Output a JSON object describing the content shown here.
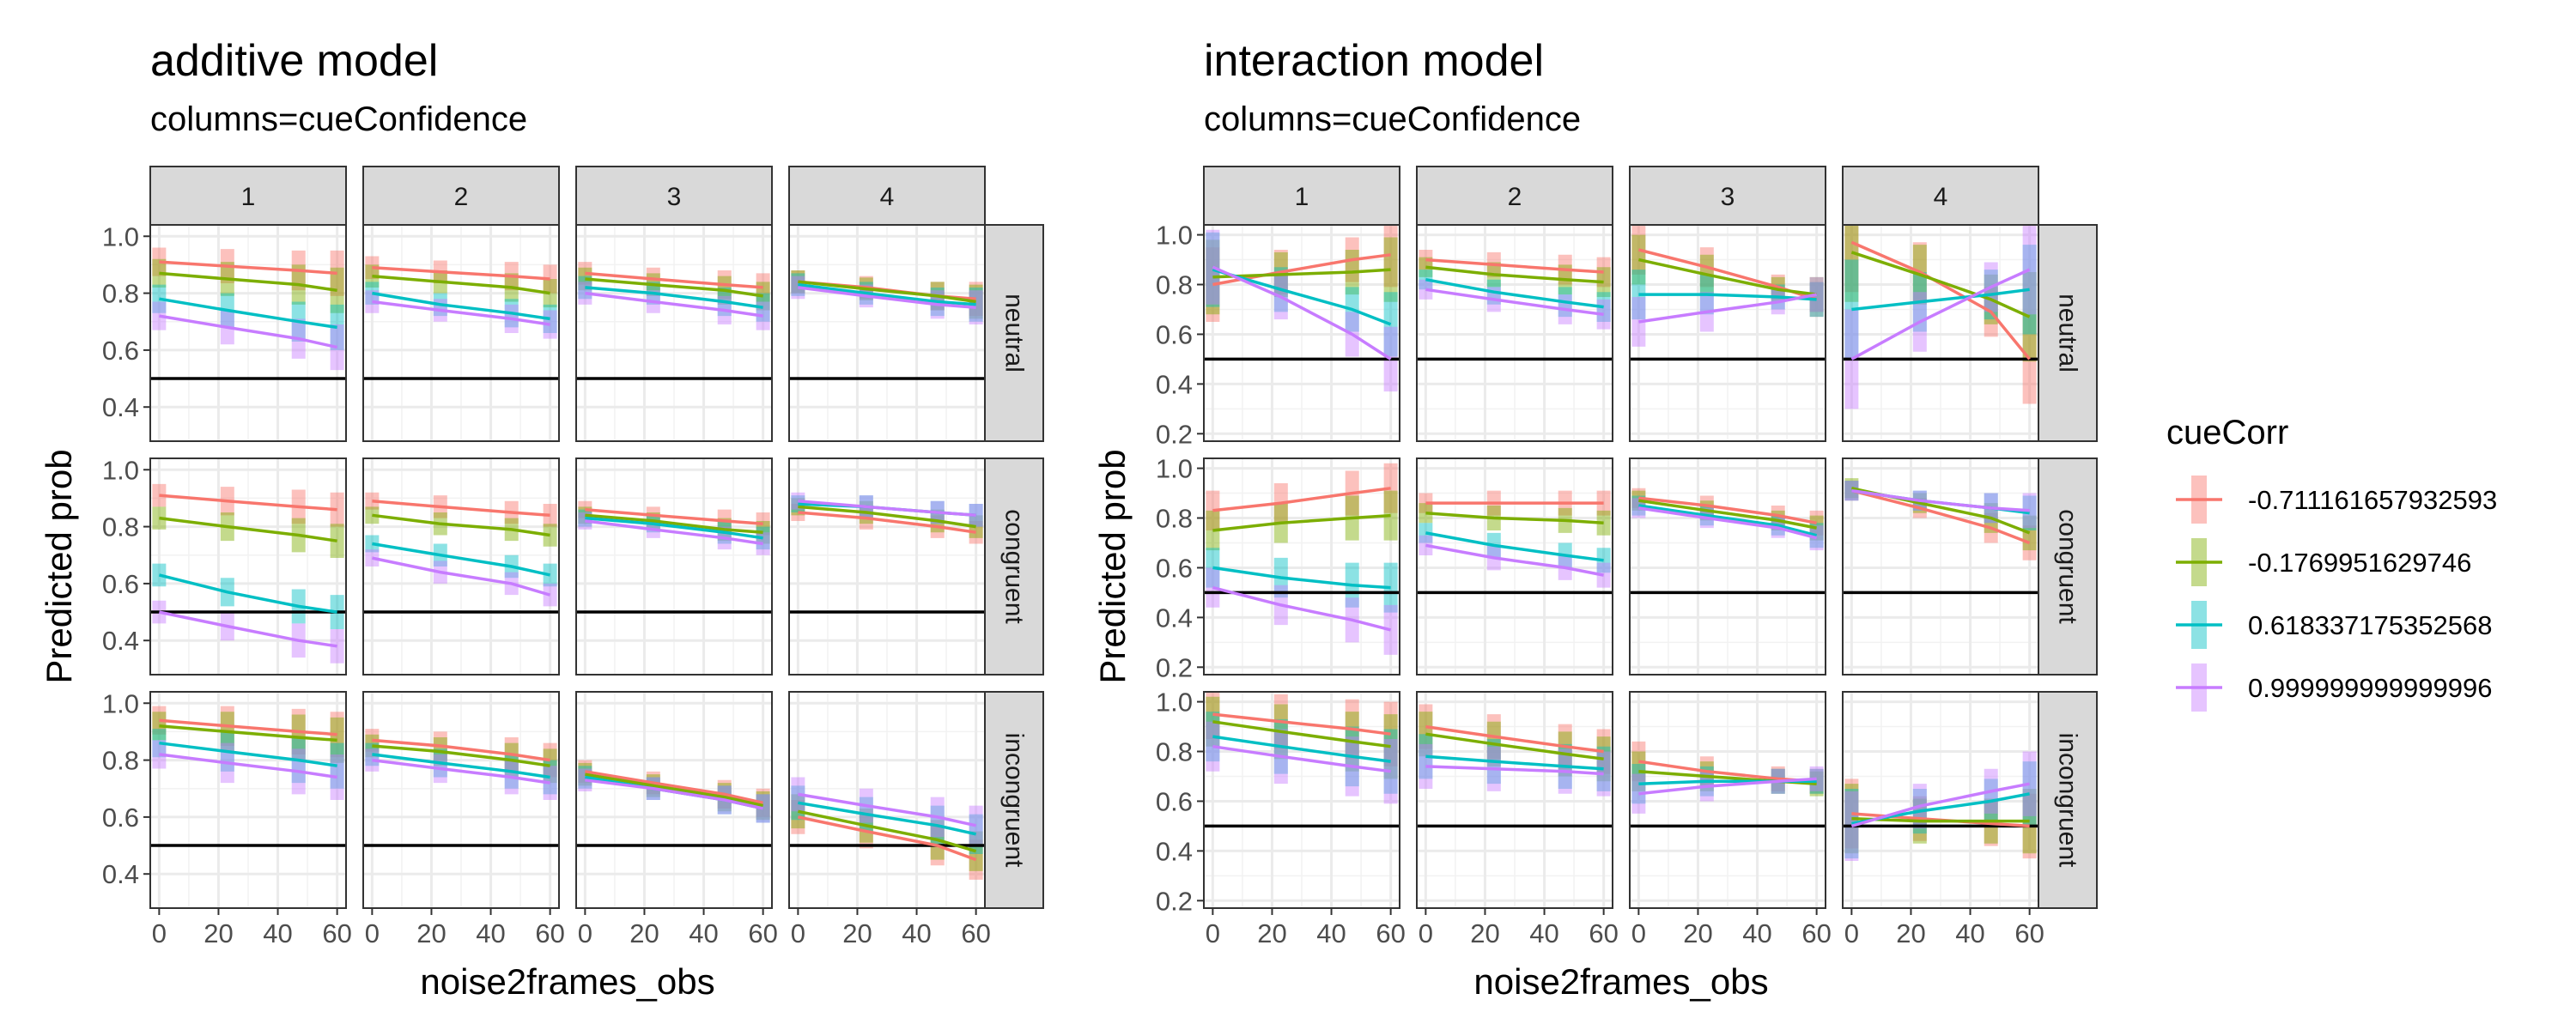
{
  "chart_data": [
    {
      "type": "line",
      "title": "additive model",
      "subtitle": "columns=cueConfidence",
      "xlabel": "noise2frames_obs",
      "ylabel": "Predicted prob",
      "x_ticks": [
        0,
        20,
        40,
        60
      ],
      "y_ticks": [
        0.4,
        0.6,
        0.8,
        1.0
      ],
      "ylim": [
        0.28,
        1.04
      ],
      "xlim": [
        -3,
        63
      ],
      "reference_line": 0.5,
      "columns": [
        "1",
        "2",
        "3",
        "4"
      ],
      "rows": [
        "neutral",
        "congruent",
        "incongruent"
      ],
      "x": [
        0,
        23,
        47,
        60
      ],
      "series_names": [
        "-0.711161657932593",
        "-0.1769951629746",
        "0.618337175352568",
        "0.999999999999996"
      ],
      "panels": [
        [
          {
            "lines": [
              [
                0.91,
                0.895,
                0.88,
                0.87
              ],
              [
                0.87,
                0.85,
                0.83,
                0.81
              ],
              [
                0.78,
                0.74,
                0.7,
                0.68
              ],
              [
                0.72,
                0.68,
                0.64,
                0.61
              ]
            ],
            "err": [
              0.05,
              0.06,
              0.07,
              0.08
            ]
          },
          {
            "lines": [
              [
                0.89,
                0.875,
                0.86,
                0.85
              ],
              [
                0.86,
                0.84,
                0.82,
                0.8
              ],
              [
                0.8,
                0.76,
                0.73,
                0.71
              ],
              [
                0.77,
                0.74,
                0.71,
                0.69
              ]
            ],
            "err": [
              0.04,
              0.04,
              0.05,
              0.05
            ]
          },
          {
            "lines": [
              [
                0.87,
                0.85,
                0.83,
                0.82
              ],
              [
                0.85,
                0.83,
                0.81,
                0.79
              ],
              [
                0.82,
                0.8,
                0.77,
                0.75
              ],
              [
                0.8,
                0.77,
                0.74,
                0.72
              ]
            ],
            "err": [
              0.04,
              0.04,
              0.05,
              0.05
            ]
          },
          {
            "lines": [
              [
                0.84,
                0.82,
                0.79,
                0.78
              ],
              [
                0.84,
                0.815,
                0.79,
                0.77
              ],
              [
                0.83,
                0.8,
                0.77,
                0.76
              ],
              [
                0.82,
                0.79,
                0.76,
                0.75
              ]
            ],
            "err": [
              0.04,
              0.04,
              0.05,
              0.06
            ]
          }
        ],
        [
          {
            "lines": [
              [
                0.91,
                0.89,
                0.87,
                0.86
              ],
              [
                0.83,
                0.8,
                0.77,
                0.75
              ],
              [
                0.63,
                0.57,
                0.52,
                0.5
              ],
              [
                0.5,
                0.45,
                0.4,
                0.38
              ]
            ],
            "err": [
              0.04,
              0.05,
              0.06,
              0.06
            ]
          },
          {
            "lines": [
              [
                0.89,
                0.87,
                0.85,
                0.84
              ],
              [
                0.84,
                0.81,
                0.79,
                0.77
              ],
              [
                0.74,
                0.7,
                0.66,
                0.63
              ],
              [
                0.69,
                0.64,
                0.6,
                0.56
              ]
            ],
            "err": [
              0.03,
              0.04,
              0.04,
              0.04
            ]
          },
          {
            "lines": [
              [
                0.86,
                0.84,
                0.82,
                0.81
              ],
              [
                0.84,
                0.82,
                0.79,
                0.78
              ],
              [
                0.83,
                0.81,
                0.78,
                0.76
              ],
              [
                0.82,
                0.79,
                0.76,
                0.74
              ]
            ],
            "err": [
              0.03,
              0.03,
              0.04,
              0.04
            ]
          },
          {
            "lines": [
              [
                0.85,
                0.83,
                0.8,
                0.78
              ],
              [
                0.87,
                0.85,
                0.82,
                0.8
              ],
              [
                0.88,
                0.87,
                0.85,
                0.84
              ],
              [
                0.89,
                0.87,
                0.85,
                0.84
              ]
            ],
            "err": [
              0.03,
              0.04,
              0.04,
              0.04
            ]
          }
        ],
        [
          {
            "lines": [
              [
                0.94,
                0.92,
                0.9,
                0.89
              ],
              [
                0.92,
                0.9,
                0.88,
                0.87
              ],
              [
                0.86,
                0.83,
                0.8,
                0.78
              ],
              [
                0.82,
                0.79,
                0.76,
                0.74
              ]
            ],
            "err": [
              0.05,
              0.07,
              0.08,
              0.08
            ]
          },
          {
            "lines": [
              [
                0.87,
                0.85,
                0.82,
                0.8
              ],
              [
                0.85,
                0.83,
                0.8,
                0.78
              ],
              [
                0.82,
                0.79,
                0.76,
                0.74
              ],
              [
                0.8,
                0.77,
                0.74,
                0.72
              ]
            ],
            "err": [
              0.04,
              0.05,
              0.06,
              0.06
            ]
          },
          {
            "lines": [
              [
                0.76,
                0.72,
                0.68,
                0.65
              ],
              [
                0.75,
                0.71,
                0.67,
                0.64
              ],
              [
                0.74,
                0.7,
                0.66,
                0.63
              ],
              [
                0.73,
                0.7,
                0.66,
                0.63
              ]
            ],
            "err": [
              0.04,
              0.04,
              0.05,
              0.05
            ]
          },
          {
            "lines": [
              [
                0.6,
                0.55,
                0.5,
                0.45
              ],
              [
                0.62,
                0.57,
                0.52,
                0.48
              ],
              [
                0.65,
                0.61,
                0.57,
                0.54
              ],
              [
                0.68,
                0.64,
                0.6,
                0.57
              ]
            ],
            "err": [
              0.06,
              0.06,
              0.07,
              0.07
            ]
          }
        ]
      ]
    },
    {
      "type": "line",
      "title": "interaction model",
      "subtitle": "columns=cueConfidence",
      "xlabel": "noise2frames_obs",
      "ylabel": "Predicted prob",
      "x_ticks": [
        0,
        20,
        40,
        60
      ],
      "y_ticks": [
        0.2,
        0.4,
        0.6,
        0.8,
        1.0
      ],
      "ylim": [
        0.17,
        1.04
      ],
      "xlim": [
        -3,
        63
      ],
      "reference_line": 0.5,
      "columns": [
        "1",
        "2",
        "3",
        "4"
      ],
      "rows": [
        "neutral",
        "congruent",
        "incongruent"
      ],
      "x": [
        0,
        23,
        47,
        60
      ],
      "series_names": [
        "-0.711161657932593",
        "-0.1769951629746",
        "0.618337175352568",
        "0.999999999999996"
      ],
      "panels": [
        [
          {
            "lines": [
              [
                0.8,
                0.85,
                0.9,
                0.92
              ],
              [
                0.83,
                0.84,
                0.85,
                0.86
              ],
              [
                0.86,
                0.78,
                0.7,
                0.64
              ],
              [
                0.87,
                0.75,
                0.6,
                0.5
              ]
            ],
            "err": [
              0.15,
              0.09,
              0.09,
              0.13
            ]
          },
          {
            "lines": [
              [
                0.9,
                0.88,
                0.86,
                0.85
              ],
              [
                0.87,
                0.84,
                0.82,
                0.81
              ],
              [
                0.82,
                0.77,
                0.73,
                0.71
              ],
              [
                0.78,
                0.74,
                0.7,
                0.68
              ]
            ],
            "err": [
              0.04,
              0.05,
              0.06,
              0.06
            ]
          },
          {
            "lines": [
              [
                0.94,
                0.87,
                0.79,
                0.74
              ],
              [
                0.9,
                0.84,
                0.78,
                0.76
              ],
              [
                0.76,
                0.76,
                0.75,
                0.74
              ],
              [
                0.65,
                0.69,
                0.73,
                0.76
              ]
            ],
            "err": [
              0.1,
              0.08,
              0.05,
              0.07
            ]
          },
          {
            "lines": [
              [
                0.97,
                0.85,
                0.69,
                0.5
              ],
              [
                0.93,
                0.84,
                0.74,
                0.67
              ],
              [
                0.7,
                0.73,
                0.76,
                0.78
              ],
              [
                0.5,
                0.65,
                0.79,
                0.86
              ]
            ],
            "err": [
              0.2,
              0.12,
              0.1,
              0.18
            ]
          }
        ],
        [
          {
            "lines": [
              [
                0.83,
                0.86,
                0.9,
                0.92
              ],
              [
                0.75,
                0.78,
                0.8,
                0.81
              ],
              [
                0.6,
                0.56,
                0.53,
                0.52
              ],
              [
                0.52,
                0.45,
                0.39,
                0.35
              ]
            ],
            "err": [
              0.08,
              0.08,
              0.09,
              0.1
            ]
          },
          {
            "lines": [
              [
                0.86,
                0.86,
                0.86,
                0.86
              ],
              [
                0.82,
                0.8,
                0.79,
                0.78
              ],
              [
                0.74,
                0.69,
                0.65,
                0.63
              ],
              [
                0.69,
                0.64,
                0.6,
                0.57
              ]
            ],
            "err": [
              0.04,
              0.05,
              0.05,
              0.05
            ]
          },
          {
            "lines": [
              [
                0.88,
                0.85,
                0.81,
                0.78
              ],
              [
                0.87,
                0.83,
                0.79,
                0.76
              ],
              [
                0.85,
                0.81,
                0.77,
                0.73
              ],
              [
                0.84,
                0.8,
                0.76,
                0.72
              ]
            ],
            "err": [
              0.04,
              0.04,
              0.04,
              0.05
            ]
          },
          {
            "lines": [
              [
                0.91,
                0.84,
                0.76,
                0.7
              ],
              [
                0.92,
                0.86,
                0.8,
                0.74
              ],
              [
                0.91,
                0.87,
                0.84,
                0.82
              ],
              [
                0.91,
                0.87,
                0.84,
                0.83
              ]
            ],
            "err": [
              0.04,
              0.04,
              0.06,
              0.07
            ]
          }
        ],
        [
          {
            "lines": [
              [
                0.95,
                0.92,
                0.89,
                0.87
              ],
              [
                0.92,
                0.88,
                0.84,
                0.82
              ],
              [
                0.86,
                0.82,
                0.78,
                0.76
              ],
              [
                0.82,
                0.78,
                0.74,
                0.72
              ]
            ],
            "err": [
              0.1,
              0.11,
              0.12,
              0.13
            ]
          },
          {
            "lines": [
              [
                0.9,
                0.86,
                0.82,
                0.8
              ],
              [
                0.87,
                0.83,
                0.79,
                0.77
              ],
              [
                0.78,
                0.76,
                0.74,
                0.73
              ],
              [
                0.74,
                0.73,
                0.72,
                0.71
              ]
            ],
            "err": [
              0.09,
              0.09,
              0.09,
              0.09
            ]
          },
          {
            "lines": [
              [
                0.76,
                0.72,
                0.69,
                0.68
              ],
              [
                0.72,
                0.7,
                0.68,
                0.67
              ],
              [
                0.67,
                0.68,
                0.68,
                0.68
              ],
              [
                0.63,
                0.66,
                0.68,
                0.69
              ]
            ],
            "err": [
              0.08,
              0.06,
              0.05,
              0.05
            ]
          },
          {
            "lines": [
              [
                0.55,
                0.53,
                0.51,
                0.5
              ],
              [
                0.53,
                0.52,
                0.52,
                0.52
              ],
              [
                0.51,
                0.56,
                0.6,
                0.63
              ],
              [
                0.5,
                0.58,
                0.64,
                0.67
              ]
            ],
            "err": [
              0.14,
              0.09,
              0.09,
              0.13
            ]
          }
        ]
      ]
    }
  ],
  "legend": {
    "title": "cueCorr",
    "placement": "right",
    "items": [
      {
        "label": "-0.711161657932593",
        "color": "#F8766D"
      },
      {
        "label": "-0.1769951629746",
        "color": "#7CAE00"
      },
      {
        "label": "0.618337175352568",
        "color": "#00BFC4"
      },
      {
        "label": "0.999999999999996",
        "color": "#C77CFF"
      }
    ]
  },
  "colors": [
    "#F8766D",
    "#7CAE00",
    "#00BFC4",
    "#C77CFF"
  ],
  "reference_line_color": "#000000"
}
